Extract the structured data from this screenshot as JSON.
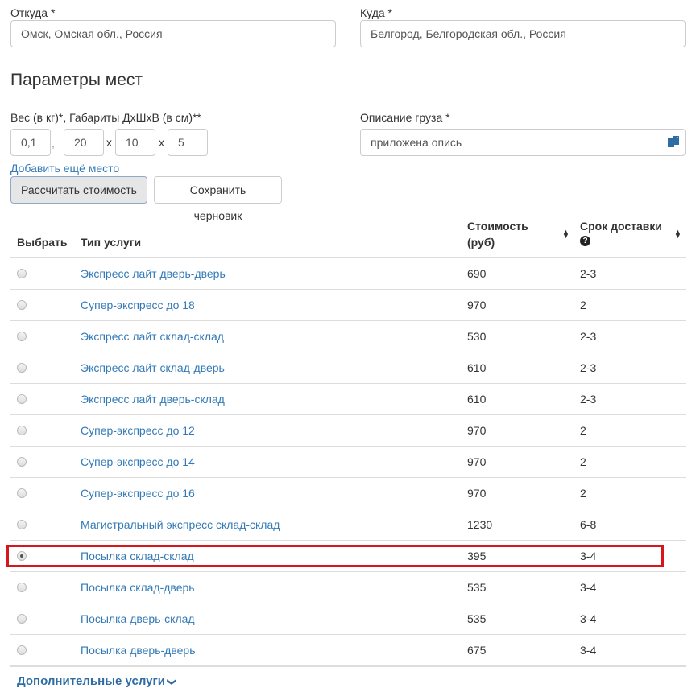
{
  "from": {
    "label": "Откуда *",
    "value": "Омск, Омская обл., Россия"
  },
  "to": {
    "label": "Куда *",
    "value": "Белгород, Белгородская обл., Россия"
  },
  "section_title": "Параметры мест",
  "dims": {
    "label": "Вес (в кг)*, Габариты ДхШхВ (в см)**",
    "weight": "0,1",
    "comma": ",",
    "length": "20",
    "x1": "x",
    "width": "10",
    "x2": "x",
    "height": "5"
  },
  "cargo": {
    "label": "Описание груза *",
    "value": "приложена опись",
    "icon": "paste-icon"
  },
  "add_place": "Добавить ещё место",
  "buttons": {
    "calc": "Рассчитать стоимость",
    "draft": "Сохранить черновик"
  },
  "table": {
    "headers": {
      "select": "Выбрать",
      "type": "Тип услуги",
      "cost1": "Стоимость",
      "cost2": "(руб)",
      "term": "Срок доставки"
    },
    "rows": [
      {
        "type": "Экспресс лайт дверь-дверь",
        "cost": "690",
        "term": "2-3",
        "selected": false
      },
      {
        "type": "Супер-экспресс до 18",
        "cost": "970",
        "term": "2",
        "selected": false
      },
      {
        "type": "Экспресс лайт склад-склад",
        "cost": "530",
        "term": "2-3",
        "selected": false
      },
      {
        "type": "Экспресс лайт склад-дверь",
        "cost": "610",
        "term": "2-3",
        "selected": false
      },
      {
        "type": "Экспресс лайт дверь-склад",
        "cost": "610",
        "term": "2-3",
        "selected": false
      },
      {
        "type": "Супер-экспресс до 12",
        "cost": "970",
        "term": "2",
        "selected": false
      },
      {
        "type": "Супер-экспресс до 14",
        "cost": "970",
        "term": "2",
        "selected": false
      },
      {
        "type": "Супер-экспресс до 16",
        "cost": "970",
        "term": "2",
        "selected": false
      },
      {
        "type": "Магистральный экспресс склад-склад",
        "cost": "1230",
        "term": "6-8",
        "selected": false
      },
      {
        "type": "Посылка склад-склад",
        "cost": "395",
        "term": "3-4",
        "selected": true
      },
      {
        "type": "Посылка склад-дверь",
        "cost": "535",
        "term": "3-4",
        "selected": false
      },
      {
        "type": "Посылка дверь-склад",
        "cost": "535",
        "term": "3-4",
        "selected": false
      },
      {
        "type": "Посылка дверь-дверь",
        "cost": "675",
        "term": "3-4",
        "selected": false
      }
    ]
  },
  "extra": "Дополнительные услуги",
  "highlight_color": "#d9151c"
}
